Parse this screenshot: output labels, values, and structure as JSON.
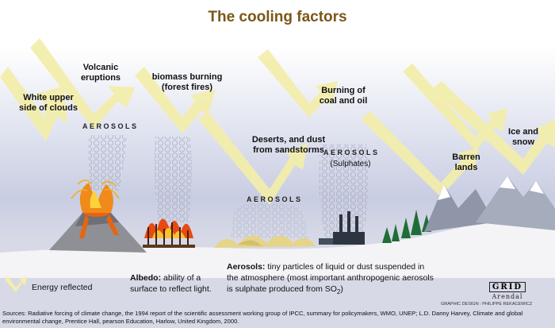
{
  "title": "The cooling factors",
  "labels": {
    "clouds": [
      "White upper",
      "side of clouds"
    ],
    "volcanic": [
      "Volcanic",
      "eruptions"
    ],
    "biomass": [
      "biomass burning",
      "(forest fires)"
    ],
    "coal": [
      "Burning of",
      "coal and oil"
    ],
    "deserts": [
      "Deserts, and dust",
      "from sandstorms"
    ],
    "barren": [
      "Barren",
      "lands"
    ],
    "ice": [
      "Ice and",
      "snow"
    ]
  },
  "aerosols": {
    "a1": "AEROSOLS",
    "a2": "AEROSOLS",
    "a3": "AEROSOLS",
    "sulphates": "(Sulphates)"
  },
  "legend": {
    "energy": "Energy reflected",
    "albedo_term": "Albedo:",
    "albedo_def1": " ability of a",
    "albedo_def2": "surface to reflect light.",
    "aerosols_term": "Aerosols:",
    "aerosols_def1": " tiny particles of liquid or dust suspended in",
    "aerosols_def2": "the atmosphere (most important anthropogenic aerosols",
    "aerosols_def3_pre": "is sulphate produced from SO",
    "aerosols_def3_sub": "2",
    "aerosols_def3_post": ")"
  },
  "logo": {
    "name": "GRID",
    "sub": "Arendal",
    "design": "GRAPHIC DESIGN : PHILIPPE REKACEWICZ"
  },
  "sources": "Sources:  Radiative forcing of climate change, the 1994 report of the scientific assessment working group of IPCC, summary for policymakers, WMO, UNEP; L.D. Danny Harvey, Climate and global environmental change, Prentice Hall, pearson Education, Harlow, United Kingdom, 2000.",
  "colors": {
    "arrow": "#f3eeaa",
    "title": "#7a5717",
    "ground": "#f4f4f6",
    "lava": "#e8640f"
  },
  "icons": [
    "reflected-energy-arrow-icon",
    "volcano-icon",
    "forest-fire-icon",
    "factory-icon",
    "tree-icon",
    "mountain-icon",
    "sand-dune-icon"
  ]
}
